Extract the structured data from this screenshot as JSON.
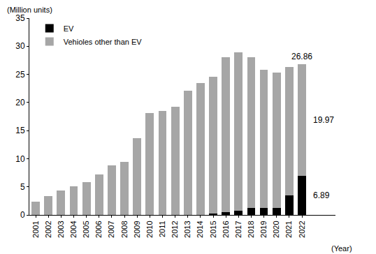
{
  "chart_data": {
    "type": "bar",
    "stacked": true,
    "y_label": "(Million units)",
    "x_label": "(Year)",
    "categories": [
      "2001",
      "2002",
      "2003",
      "2004",
      "2005",
      "2006",
      "2007",
      "2008",
      "2009",
      "2010",
      "2011",
      "2012",
      "2013",
      "2014",
      "2015",
      "2016",
      "2017",
      "2018",
      "2019",
      "2020",
      "2021",
      "2022"
    ],
    "series": [
      {
        "name": "EV",
        "color": "#000000",
        "values": [
          0,
          0,
          0,
          0,
          0,
          0,
          0,
          0,
          0,
          0,
          0,
          0,
          0,
          0,
          0.3,
          0.5,
          0.8,
          1.2,
          1.2,
          1.3,
          3.5,
          6.89
        ]
      },
      {
        "name": "Vehioles other than EV",
        "color": "#a6a6a6",
        "values": [
          2.4,
          3.3,
          4.4,
          5.1,
          5.8,
          7.2,
          8.8,
          9.4,
          13.6,
          18.1,
          18.5,
          19.3,
          22.1,
          23.5,
          24.3,
          27.5,
          28.1,
          26.9,
          24.6,
          24.0,
          22.8,
          19.97
        ]
      }
    ],
    "annotations": [
      {
        "text": "26.86",
        "category": "2022",
        "y": 26.86
      },
      {
        "text": "19.97",
        "category": "2022",
        "series": "Vehioles other than EV"
      },
      {
        "text": "6.89",
        "category": "2022",
        "series": "EV"
      }
    ],
    "ylim": [
      0,
      35
    ],
    "yticks": [
      0,
      5,
      10,
      15,
      20,
      25,
      30,
      35
    ],
    "grid": false,
    "legend": "top-left"
  }
}
